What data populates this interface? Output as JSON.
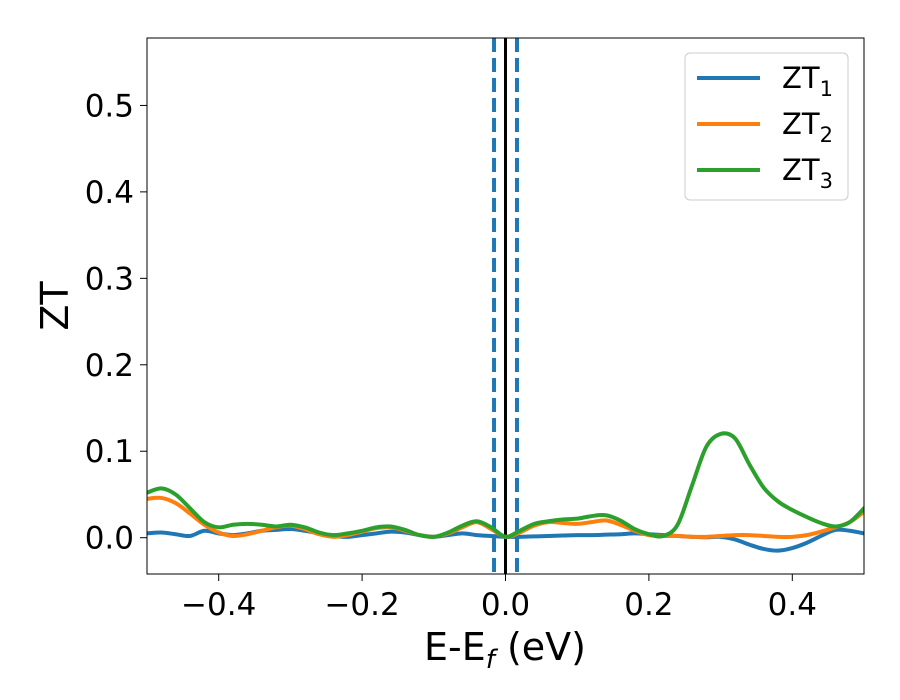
{
  "chart_data": {
    "type": "line",
    "title": "",
    "xlabel": "E-E",
    "xlabel_sub": "f",
    "xlabel_unit": " (eV)",
    "ylabel": "ZT",
    "xlim": [
      -0.5,
      0.5
    ],
    "ylim": [
      -0.042,
      0.578
    ],
    "xticks": [
      -0.4,
      -0.2,
      0.0,
      0.2,
      0.4
    ],
    "xtick_labels": [
      "−0.4",
      "−0.2",
      "0.0",
      "0.2",
      "0.4"
    ],
    "yticks": [
      0.0,
      0.1,
      0.2,
      0.3,
      0.4,
      0.5
    ],
    "ytick_labels": [
      "0.0",
      "0.1",
      "0.2",
      "0.3",
      "0.4",
      "0.5"
    ],
    "grid": false,
    "legend_position": "top-right",
    "vlines": [
      {
        "x": 0.0,
        "style": "solid",
        "color": "#000000"
      },
      {
        "x": -0.016,
        "style": "dashed",
        "color": "#1f77b4"
      },
      {
        "x": 0.016,
        "style": "dashed",
        "color": "#1f77b4"
      }
    ],
    "series": [
      {
        "name": "ZT",
        "name_sub": "1",
        "color": "#1f77b4",
        "x": [
          -0.5,
          -0.48,
          -0.46,
          -0.44,
          -0.42,
          -0.4,
          -0.38,
          -0.36,
          -0.34,
          -0.32,
          -0.3,
          -0.28,
          -0.26,
          -0.24,
          -0.22,
          -0.2,
          -0.18,
          -0.16,
          -0.14,
          -0.12,
          -0.1,
          -0.08,
          -0.06,
          -0.04,
          -0.02,
          0.0,
          0.02,
          0.04,
          0.06,
          0.08,
          0.1,
          0.12,
          0.14,
          0.16,
          0.18,
          0.2,
          0.22,
          0.24,
          0.26,
          0.28,
          0.3,
          0.32,
          0.34,
          0.36,
          0.38,
          0.4,
          0.42,
          0.44,
          0.46,
          0.48,
          0.5
        ],
        "y": [
          0.005,
          0.006,
          0.004,
          0.002,
          0.008,
          0.005,
          0.003,
          0.005,
          0.008,
          0.009,
          0.01,
          0.008,
          0.005,
          0.002,
          0.001,
          0.003,
          0.005,
          0.007,
          0.006,
          0.003,
          0.001,
          0.003,
          0.005,
          0.003,
          0.002,
          0.001,
          0.001,
          0.0015,
          0.002,
          0.0025,
          0.003,
          0.003,
          0.0035,
          0.004,
          0.005,
          0.004,
          0.003,
          0.002,
          0.001,
          0.0005,
          0.001,
          -0.002,
          -0.008,
          -0.013,
          -0.015,
          -0.012,
          -0.006,
          0.002,
          0.009,
          0.008,
          0.005
        ]
      },
      {
        "name": "ZT",
        "name_sub": "2",
        "color": "#ff7f0e",
        "x": [
          -0.5,
          -0.48,
          -0.46,
          -0.44,
          -0.42,
          -0.4,
          -0.38,
          -0.36,
          -0.34,
          -0.32,
          -0.3,
          -0.28,
          -0.26,
          -0.24,
          -0.22,
          -0.2,
          -0.18,
          -0.16,
          -0.14,
          -0.12,
          -0.1,
          -0.08,
          -0.06,
          -0.04,
          -0.02,
          0.0,
          0.02,
          0.04,
          0.06,
          0.08,
          0.1,
          0.12,
          0.14,
          0.16,
          0.18,
          0.2,
          0.22,
          0.24,
          0.26,
          0.28,
          0.3,
          0.32,
          0.34,
          0.36,
          0.38,
          0.4,
          0.42,
          0.44,
          0.46,
          0.48,
          0.5
        ],
        "y": [
          0.045,
          0.046,
          0.04,
          0.028,
          0.015,
          0.006,
          0.002,
          0.004,
          0.008,
          0.012,
          0.014,
          0.01,
          0.004,
          0.001,
          0.003,
          0.007,
          0.011,
          0.012,
          0.008,
          0.003,
          0.001,
          0.005,
          0.012,
          0.018,
          0.01,
          0.001,
          0.006,
          0.014,
          0.018,
          0.017,
          0.016,
          0.018,
          0.02,
          0.015,
          0.008,
          0.003,
          0.002,
          0.002,
          0.001,
          0.001,
          0.002,
          0.003,
          0.003,
          0.002,
          0.001,
          0.001,
          0.003,
          0.007,
          0.012,
          0.018,
          0.03
        ]
      },
      {
        "name": "ZT",
        "name_sub": "3",
        "color": "#2ca02c",
        "x": [
          -0.5,
          -0.48,
          -0.46,
          -0.44,
          -0.42,
          -0.4,
          -0.38,
          -0.36,
          -0.34,
          -0.32,
          -0.3,
          -0.28,
          -0.26,
          -0.24,
          -0.22,
          -0.2,
          -0.18,
          -0.16,
          -0.14,
          -0.12,
          -0.1,
          -0.08,
          -0.06,
          -0.04,
          -0.02,
          0.0,
          0.02,
          0.04,
          0.06,
          0.08,
          0.1,
          0.12,
          0.14,
          0.16,
          0.18,
          0.2,
          0.22,
          0.24,
          0.26,
          0.28,
          0.3,
          0.32,
          0.34,
          0.36,
          0.38,
          0.4,
          0.42,
          0.44,
          0.46,
          0.48,
          0.5
        ],
        "y": [
          0.052,
          0.057,
          0.05,
          0.034,
          0.018,
          0.012,
          0.015,
          0.016,
          0.015,
          0.013,
          0.015,
          0.012,
          0.006,
          0.003,
          0.005,
          0.008,
          0.012,
          0.013,
          0.009,
          0.003,
          0.001,
          0.006,
          0.014,
          0.019,
          0.012,
          0.001,
          0.008,
          0.016,
          0.019,
          0.021,
          0.022,
          0.025,
          0.026,
          0.02,
          0.01,
          0.004,
          0.002,
          0.015,
          0.06,
          0.105,
          0.12,
          0.115,
          0.085,
          0.058,
          0.042,
          0.032,
          0.024,
          0.017,
          0.013,
          0.018,
          0.034
        ]
      }
    ]
  }
}
